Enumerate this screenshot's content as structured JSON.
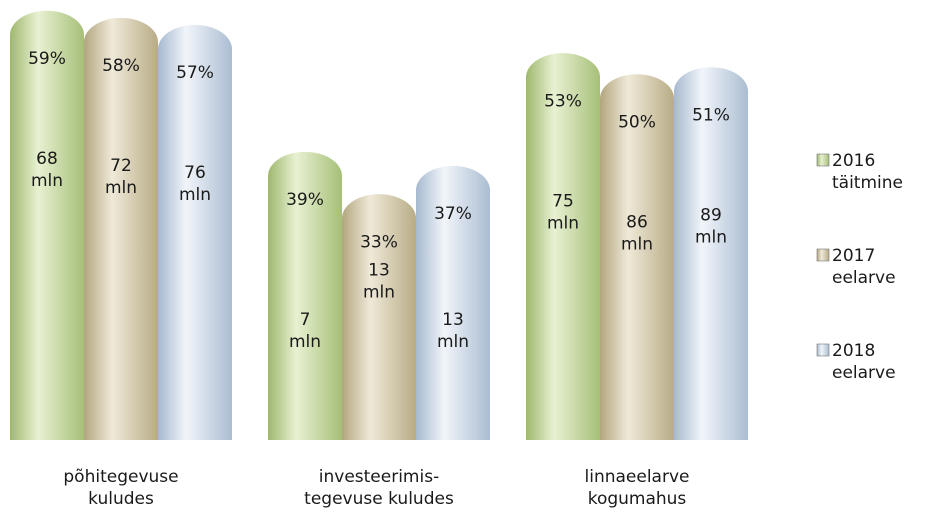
{
  "chart_data": {
    "type": "bar",
    "categories": [
      [
        "põhitegevuse",
        "kuludes"
      ],
      [
        "investeerimis-",
        "tegevuse kuludes"
      ],
      [
        "linnaeelarve",
        "kogumahus"
      ]
    ],
    "series": [
      {
        "name": [
          "2016",
          "täitmine"
        ],
        "color": "#c9dca0",
        "percent": [
          59,
          39,
          53
        ],
        "percent_labels": [
          "59%",
          "39%",
          "53%"
        ],
        "amount_labels": [
          [
            "68",
            "mln"
          ],
          [
            "7",
            "mln"
          ],
          [
            "75",
            "mln"
          ]
        ]
      },
      {
        "name": [
          "2017",
          "eelarve"
        ],
        "color": "#d9d0b2",
        "percent": [
          58,
          33,
          50
        ],
        "percent_labels": [
          "58%",
          "33%",
          "50%"
        ],
        "amount_labels": [
          [
            "72",
            "mln"
          ],
          [
            "13",
            "mln"
          ],
          [
            "86",
            "mln"
          ]
        ]
      },
      {
        "name": [
          "2018",
          "eelarve"
        ],
        "color": "#d3dfec",
        "percent": [
          57,
          37,
          51
        ],
        "percent_labels": [
          "57%",
          "37%",
          "51%"
        ],
        "amount_labels": [
          [
            "76",
            "mln"
          ],
          [
            "13",
            "mln"
          ],
          [
            "89",
            "mln"
          ]
        ]
      }
    ],
    "ylim": [
      0,
      59
    ],
    "legend_position": "right",
    "grid": false
  }
}
